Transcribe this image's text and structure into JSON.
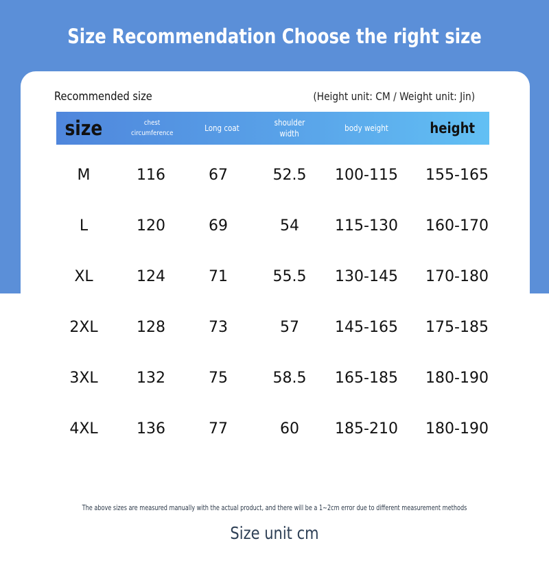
{
  "title": "Size Recommendation Choose the right size",
  "recommended_label": "Recommended size",
  "unit_note": "(Height unit: CM / Weight unit: Jin)",
  "columns": [
    {
      "label": "size"
    },
    {
      "label": "chest",
      "label2": "circumference"
    },
    {
      "label": "Long coat"
    },
    {
      "label": "shoulder",
      "label2": "width"
    },
    {
      "label": "body weight"
    },
    {
      "label": "height"
    }
  ],
  "rows": [
    [
      "M",
      "116",
      "67",
      "52.5",
      "100-115",
      "155-165"
    ],
    [
      "L",
      "120",
      "69",
      "54",
      "115-130",
      "160-170"
    ],
    [
      "XL",
      "124",
      "71",
      "55.5",
      "130-145",
      "170-180"
    ],
    [
      "2XL",
      "128",
      "73",
      "57",
      "145-165",
      "175-185"
    ],
    [
      "3XL",
      "132",
      "75",
      "58.5",
      "165-185",
      "180-190"
    ],
    [
      "4XL",
      "136",
      "77",
      "60",
      "185-210",
      "180-190"
    ]
  ],
  "footnote": "The above sizes are measured manually with the actual product, and there will be a 1~2cm error due to different measurement methods",
  "size_unit": "Size unit cm",
  "colors": {
    "background_blue": "#5b8fd8",
    "header_gradient_start": "#4f86dc",
    "header_gradient_end": "#62c0f4",
    "text_dark": "#111111"
  }
}
